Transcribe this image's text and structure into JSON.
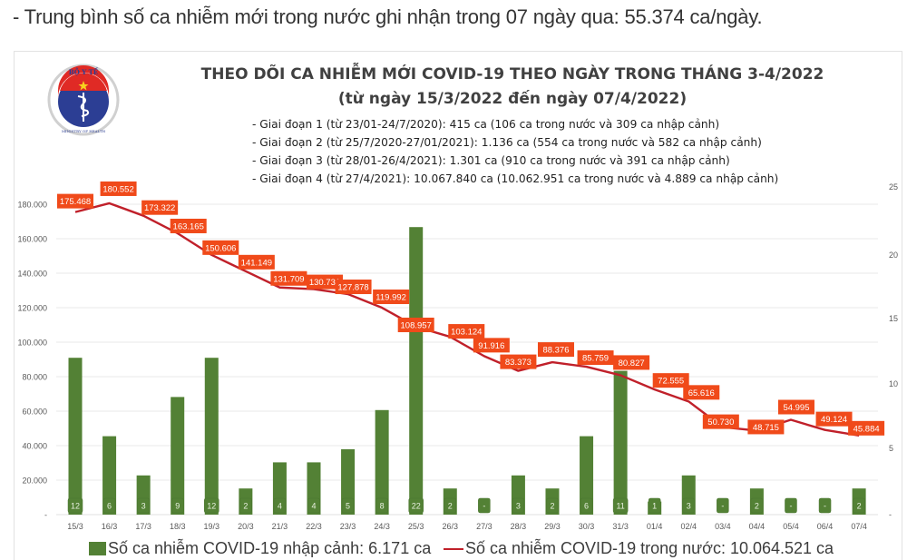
{
  "article": {
    "headline": "- Trung bình số ca nhiễm mới trong nước ghi nhận trong 07 ngày qua: 55.374 ca/ngày."
  },
  "logo": {
    "name": "ministry-of-health-logo",
    "top_text": "BỘ Y TẾ",
    "bottom_text": "MINISTRY OF HEALTH"
  },
  "chart_header": {
    "title_line1": "THEO DÕI CA NHIỄM MỚI COVID-19 THEO NGÀY TRONG THÁNG 3-4/2022",
    "title_line2": "(từ ngày 15/3/2022 đến ngày 07/4/2022)",
    "phases": [
      "- Giai đoạn 1 (từ 23/01-24/7/2020): 415 ca (106 ca trong nước và 309 ca nhập cảnh)",
      "- Giai đoạn 2 (từ 25/7/2020-27/01/2021): 1.136 ca (554 ca trong nước và 582 ca nhập cảnh)",
      "- Giai đoạn 3 (từ 28/01-26/4/2021): 1.301 ca (910 ca trong nước và 391 ca nhập cảnh)",
      "- Giai đoạn 4 (từ 27/4/2021): 10.067.840 ca (10.062.951 ca trong nước và 4.889 ca nhập cảnh)"
    ]
  },
  "legend": {
    "bar_label": "Số ca nhiễm COVID-19 nhập cảnh: 6.171 ca",
    "line_label": "Số ca nhiễm COVID-19 trong nước: 10.064.521 ca"
  },
  "colors": {
    "bar": "#538135",
    "line": "#c0202a",
    "label_box": "#f04a1a",
    "grid": "#eeeeee",
    "axis_text": "#595959"
  },
  "chart_data": {
    "type": "bar+line",
    "title": "THEO DÕI CA NHIỄM MỚI COVID-19 THEO NGÀY TRONG THÁNG 3-4/2022",
    "subtitle": "(từ ngày 15/3/2022 đến ngày 07/4/2022)",
    "categories": [
      "15/3",
      "16/3",
      "17/3",
      "18/3",
      "19/3",
      "20/3",
      "21/3",
      "22/3",
      "23/3",
      "24/3",
      "25/3",
      "26/3",
      "27/3",
      "28/3",
      "29/3",
      "30/3",
      "31/3",
      "01/4",
      "02/4",
      "03/4",
      "04/4",
      "05/4",
      "06/4",
      "07/4"
    ],
    "series": [
      {
        "name": "Số ca nhiễm COVID-19 trong nước",
        "type": "line",
        "axis": "left",
        "values": [
          175468,
          180552,
          173322,
          163165,
          150606,
          141149,
          131709,
          130731,
          127878,
          119992,
          108957,
          103124,
          91916,
          83373,
          88376,
          85759,
          80827,
          72555,
          65616,
          50730,
          48715,
          54995,
          49124,
          45884
        ],
        "labels": [
          "175.468",
          "180.552",
          "173.322",
          "163.165",
          "150.606",
          "141.149",
          "131.709",
          "130.731",
          "127.878",
          "119.992",
          "108.957",
          "103.124",
          "91.916",
          "83.373",
          "88.376",
          "85.759",
          "80.827",
          "72.555",
          "65.616",
          "50.730",
          "48.715",
          "54.995",
          "49.124",
          "45.884"
        ]
      },
      {
        "name": "Số ca nhiễm COVID-19 nhập cảnh",
        "type": "bar",
        "axis": "right",
        "values": [
          12,
          6,
          3,
          9,
          12,
          2,
          4,
          4,
          5,
          8,
          22,
          2,
          0,
          3,
          2,
          6,
          11,
          1,
          3,
          0,
          2,
          0,
          0,
          2
        ],
        "labels": [
          "12",
          "6",
          "3",
          "9",
          "12",
          "2",
          "4",
          "4",
          "5",
          "8",
          "22",
          "2",
          "-",
          "3",
          "2",
          "6",
          "11",
          "1",
          "3",
          "-",
          "2",
          "-",
          "-",
          "2"
        ]
      }
    ],
    "left_axis": {
      "ylim": [
        0,
        190000
      ],
      "ticks": [
        0,
        20000,
        40000,
        60000,
        80000,
        100000,
        120000,
        140000,
        160000,
        180000
      ],
      "tick_labels": [
        "-",
        "20.000",
        "40.000",
        "60.000",
        "80.000",
        "100.000",
        "120.000",
        "140.000",
        "160.000",
        "180.000"
      ]
    },
    "right_axis": {
      "ylim": [
        0,
        25
      ],
      "ticks": [
        0,
        5,
        10,
        15,
        20,
        25
      ],
      "tick_labels": [
        "-",
        "5",
        "10",
        "15",
        "20",
        "25"
      ]
    },
    "grid": true,
    "legend_position": "bottom",
    "xlabel": "",
    "ylabel": ""
  }
}
